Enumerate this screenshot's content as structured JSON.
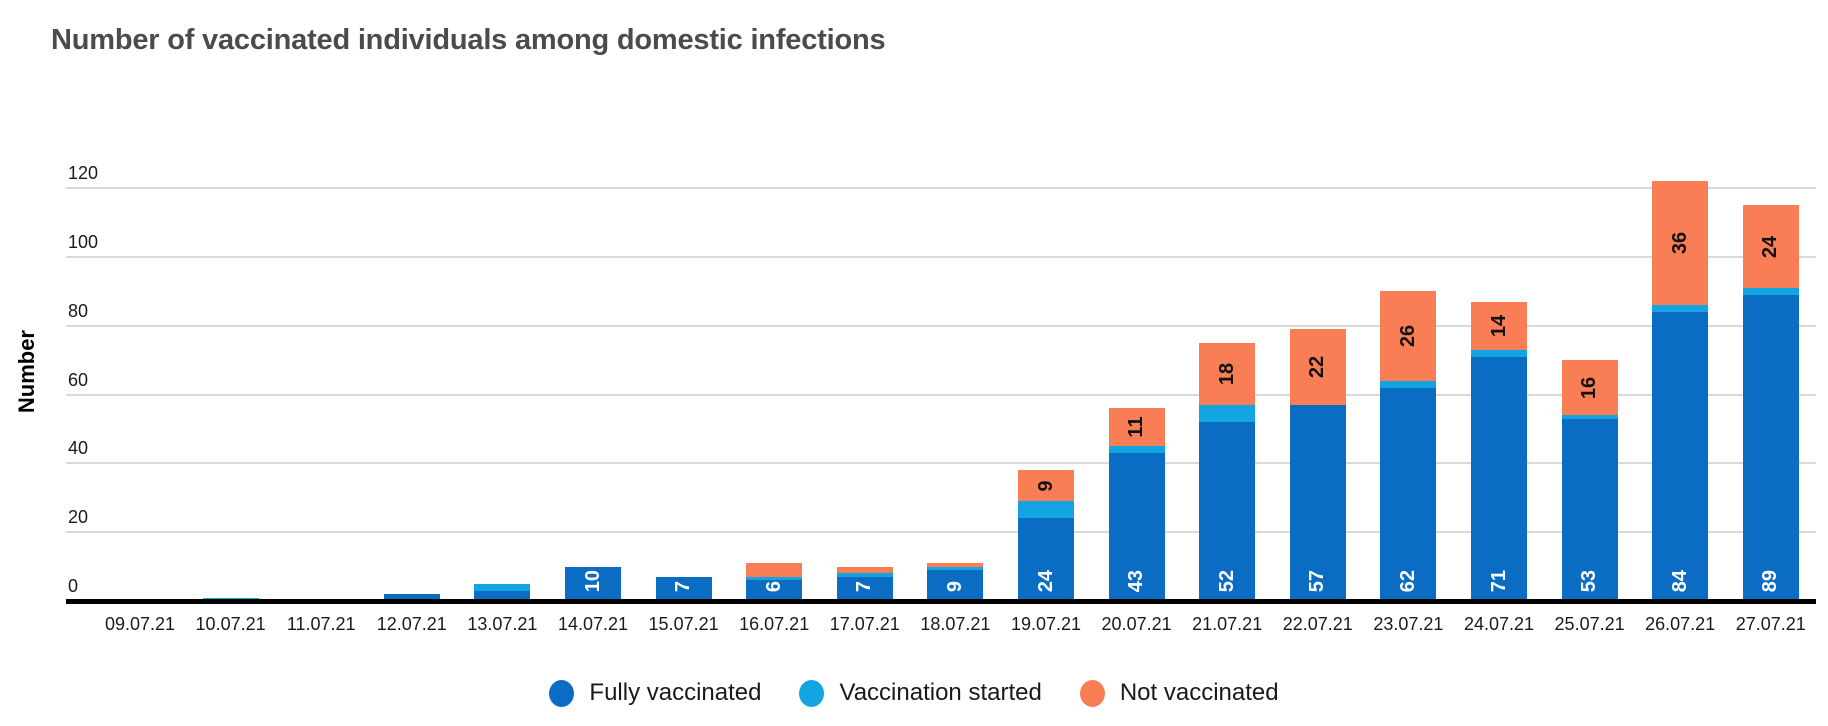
{
  "title": "Number of vaccinated individuals among domestic infections",
  "colors": {
    "fully_vaccinated": "#0b6cc4",
    "vaccination_started": "#12a5e2",
    "not_vaccinated": "#f97e55",
    "grid": "#d9d9d9",
    "axis": "#000000",
    "title_text": "#4b4b4e"
  },
  "legend": [
    {
      "key": "fully_vaccinated",
      "label": "Fully vaccinated"
    },
    {
      "key": "vaccination_started",
      "label": "Vaccination started"
    },
    {
      "key": "not_vaccinated",
      "label": "Not vaccinated"
    }
  ],
  "chart_data": {
    "type": "bar",
    "stacked": true,
    "title": "Number of vaccinated individuals among domestic infections",
    "xlabel": "",
    "ylabel": "Number",
    "ylim": [
      0,
      120
    ],
    "yticks": [
      0,
      20,
      40,
      60,
      80,
      100,
      120
    ],
    "grid": true,
    "legend_position": "bottom",
    "categories": [
      "09.07.21",
      "10.07.21",
      "11.07.21",
      "12.07.21",
      "13.07.21",
      "14.07.21",
      "15.07.21",
      "16.07.21",
      "17.07.21",
      "18.07.21",
      "19.07.21",
      "20.07.21",
      "21.07.21",
      "22.07.21",
      "23.07.21",
      "24.07.21",
      "25.07.21",
      "26.07.21",
      "27.07.21"
    ],
    "series": [
      {
        "name": "Fully vaccinated",
        "color_key": "fully_vaccinated",
        "values": [
          0,
          0,
          0,
          2,
          3,
          10,
          7,
          6,
          7,
          9,
          24,
          43,
          52,
          57,
          62,
          71,
          53,
          84,
          89
        ]
      },
      {
        "name": "Vaccination started",
        "color_key": "vaccination_started",
        "values": [
          0,
          1,
          0,
          0,
          2,
          0,
          0,
          1,
          1,
          1,
          5,
          2,
          5,
          0,
          2,
          2,
          1,
          2,
          2
        ]
      },
      {
        "name": "Not vaccinated",
        "color_key": "not_vaccinated",
        "values": [
          0,
          0,
          0,
          0,
          0,
          0,
          0,
          4,
          2,
          1,
          9,
          11,
          18,
          22,
          26,
          14,
          16,
          36,
          24
        ]
      }
    ],
    "bar_labels": {
      "fully_vaccinated": [
        "",
        "",
        "",
        "",
        "",
        "10",
        "7",
        "6",
        "7",
        "9",
        "24",
        "43",
        "52",
        "57",
        "62",
        "71",
        "53",
        "84",
        "89"
      ],
      "not_vaccinated": [
        "",
        "",
        "",
        "",
        "",
        "",
        "",
        "",
        "",
        "",
        "9",
        "11",
        "18",
        "22",
        "26",
        "14",
        "16",
        "36",
        "24"
      ]
    }
  }
}
